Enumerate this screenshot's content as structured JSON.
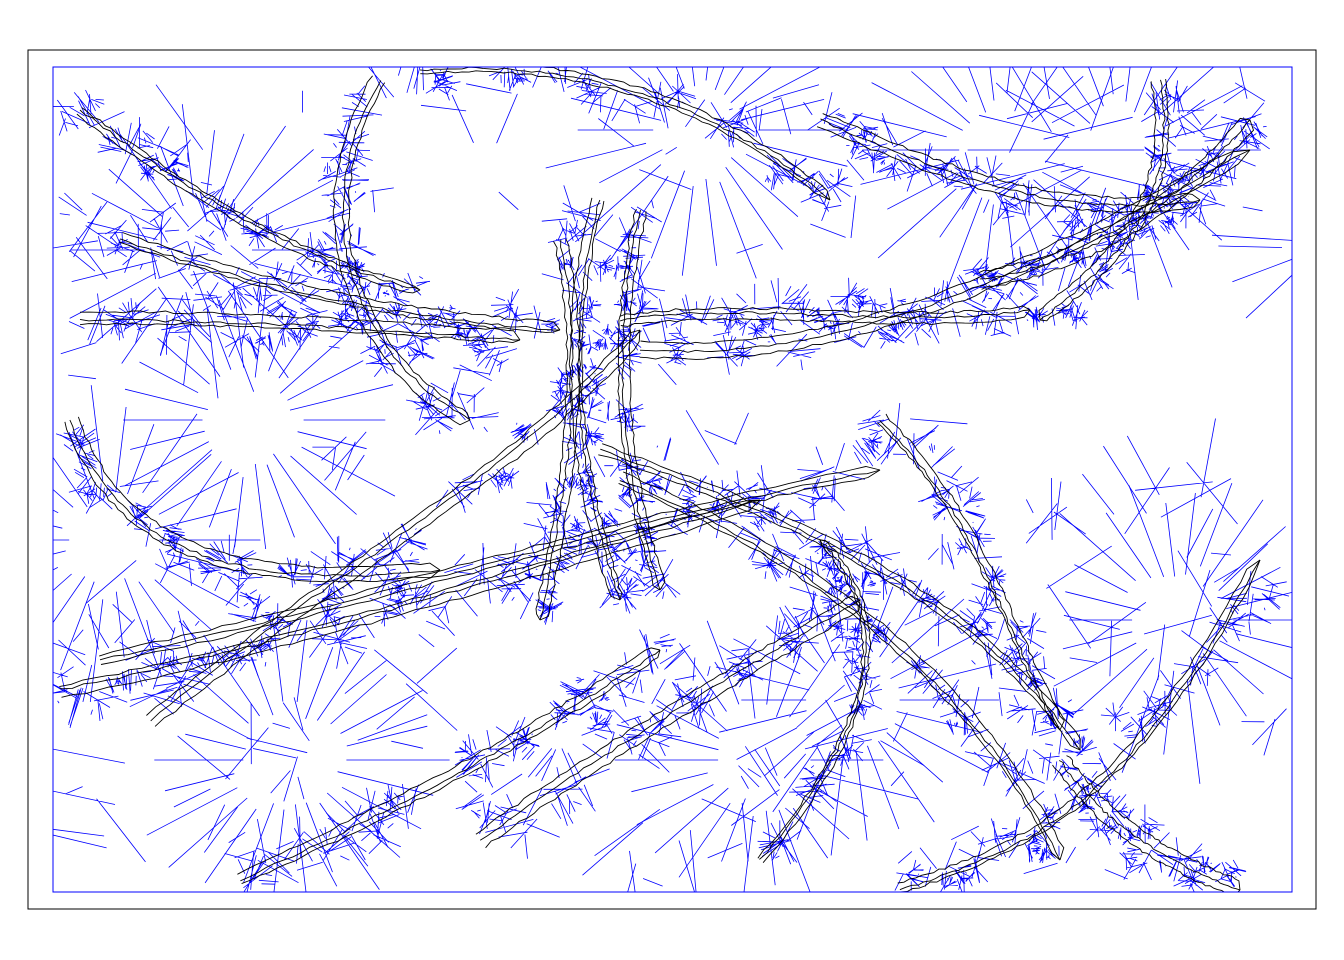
{
  "diagram": {
    "type": "voronoi-overlay",
    "frame": true,
    "colors": {
      "frame": "#000000",
      "voronoi_edges": "#0000ff",
      "paths": "#000000",
      "background": "#ffffff"
    },
    "icon_names": {
      "voronoi": "voronoi-mesh",
      "paths": "trajectory-lines"
    }
  }
}
